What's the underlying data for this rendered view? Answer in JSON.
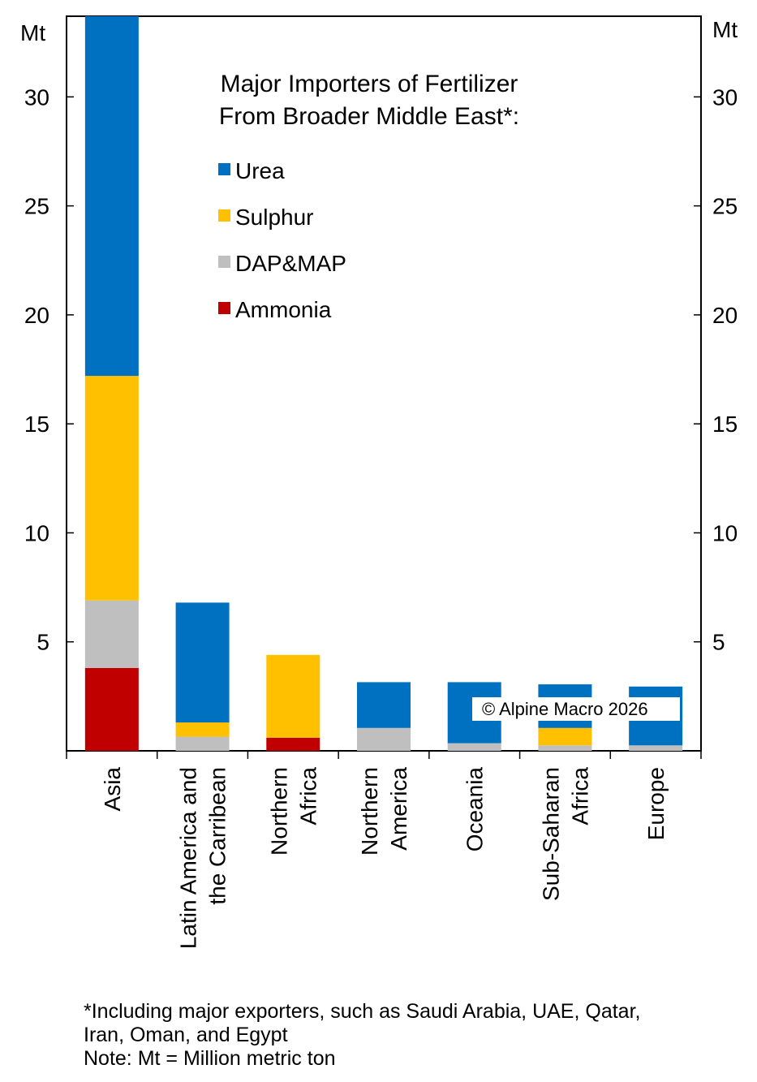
{
  "chart_data": {
    "type": "bar",
    "stacked": true,
    "title": "Major Importers of Fertilizer From Broader Middle East*:",
    "title_lines": [
      "Major Importers of Fertilizer",
      "From Broader Middle East*:"
    ],
    "y_unit_left": "Mt",
    "y_unit_right": "Mt",
    "ylim": [
      0,
      33.7
    ],
    "yticks": [
      5,
      10,
      15,
      20,
      25,
      30
    ],
    "ytick_labels": [
      "5",
      "10",
      "15",
      "20",
      "25",
      "30"
    ],
    "categories": [
      "Asia",
      "Latin America and the Carribean",
      "Northern Africa",
      "Northern America",
      "Oceania",
      "Sub-Saharan Africa",
      "Europe"
    ],
    "category_label_lines": [
      [
        "Asia"
      ],
      [
        "Latin America and",
        "the Carribean"
      ],
      [
        "Northern",
        "Africa"
      ],
      [
        "Northern",
        "America"
      ],
      [
        "Oceania"
      ],
      [
        "Sub-Saharan",
        "Africa"
      ],
      [
        "Europe"
      ]
    ],
    "series": [
      {
        "name": "Ammonia",
        "color": "#C00000",
        "values": [
          3.8,
          0,
          0.6,
          0,
          0,
          0,
          0
        ]
      },
      {
        "name": "DAP&MAP",
        "color": "#BFBFBF",
        "values": [
          3.1,
          0.65,
          0,
          1.05,
          0.35,
          0.25,
          0.25
        ]
      },
      {
        "name": "Sulphur",
        "color": "#FFC000",
        "values": [
          10.3,
          0.65,
          3.8,
          0,
          0,
          0.8,
          0
        ]
      },
      {
        "name": "Urea",
        "color": "#0070C0",
        "values": [
          16.5,
          5.5,
          0,
          2.1,
          2.8,
          2.0,
          2.7
        ]
      }
    ],
    "legend_order": [
      "Urea",
      "Sulphur",
      "DAP&MAP",
      "Ammonia"
    ],
    "legend_position": "top-right",
    "grid": false,
    "watermark": "© Alpine Macro 2026"
  },
  "footnotes": [
    "*Including major exporters, such as Saudi Arabia, UAE, Qatar,",
    "Iran, Oman, and Egypt",
    "Note: Mt = Million metric ton"
  ]
}
